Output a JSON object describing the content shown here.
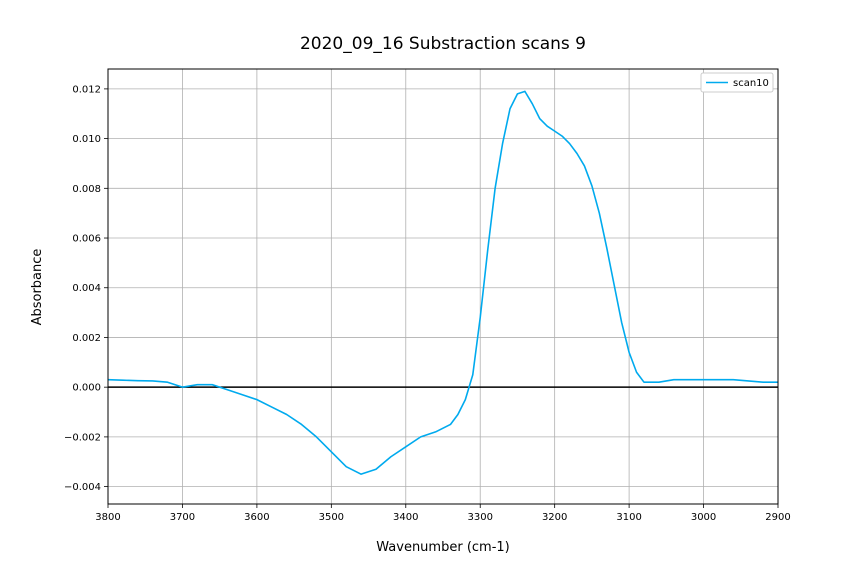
{
  "chart_data": {
    "type": "line",
    "title": "2020_09_16 Substraction scans 9",
    "xlabel": "Wavenumber (cm-1)",
    "ylabel": "Absorbance",
    "xlim": [
      3800,
      2900
    ],
    "ylim": [
      -0.0047,
      0.0128
    ],
    "x_reversed": true,
    "grid": true,
    "legend_position": "top-right",
    "x_ticks": [
      3800,
      3700,
      3600,
      3500,
      3400,
      3300,
      3200,
      3100,
      3000,
      2900
    ],
    "x_tick_labels": [
      "3800",
      "3700",
      "3600",
      "3500",
      "3400",
      "3300",
      "3200",
      "3100",
      "3000",
      "2900"
    ],
    "y_ticks": [
      -0.004,
      -0.002,
      0.0,
      0.002,
      0.004,
      0.006,
      0.008,
      0.01,
      0.012
    ],
    "y_tick_labels": [
      "−0.004",
      "−0.002",
      "0.000",
      "0.002",
      "0.004",
      "0.006",
      "0.008",
      "0.010",
      "0.012"
    ],
    "zero_line": true,
    "series": [
      {
        "name": "scan10",
        "color": "#00aaee",
        "points": [
          [
            3800,
            0.0003
          ],
          [
            3780,
            0.00028
          ],
          [
            3760,
            0.00026
          ],
          [
            3740,
            0.00025
          ],
          [
            3720,
            0.0002
          ],
          [
            3700,
            0.0
          ],
          [
            3680,
            0.0001
          ],
          [
            3660,
            0.0001
          ],
          [
            3640,
            -0.0001
          ],
          [
            3620,
            -0.0003
          ],
          [
            3600,
            -0.0005
          ],
          [
            3580,
            -0.0008
          ],
          [
            3560,
            -0.0011
          ],
          [
            3540,
            -0.0015
          ],
          [
            3520,
            -0.002
          ],
          [
            3500,
            -0.0026
          ],
          [
            3480,
            -0.0032
          ],
          [
            3460,
            -0.0035
          ],
          [
            3440,
            -0.0033
          ],
          [
            3420,
            -0.0028
          ],
          [
            3400,
            -0.0024
          ],
          [
            3380,
            -0.002
          ],
          [
            3360,
            -0.0018
          ],
          [
            3340,
            -0.0015
          ],
          [
            3330,
            -0.0011
          ],
          [
            3320,
            -0.0005
          ],
          [
            3310,
            0.0005
          ],
          [
            3300,
            0.0028
          ],
          [
            3290,
            0.0055
          ],
          [
            3280,
            0.008
          ],
          [
            3270,
            0.0098
          ],
          [
            3260,
            0.0112
          ],
          [
            3250,
            0.0118
          ],
          [
            3240,
            0.0119
          ],
          [
            3230,
            0.0114
          ],
          [
            3220,
            0.0108
          ],
          [
            3210,
            0.0105
          ],
          [
            3200,
            0.0103
          ],
          [
            3190,
            0.0101
          ],
          [
            3180,
            0.0098
          ],
          [
            3170,
            0.0094
          ],
          [
            3160,
            0.0089
          ],
          [
            3150,
            0.0081
          ],
          [
            3140,
            0.007
          ],
          [
            3130,
            0.0056
          ],
          [
            3120,
            0.0041
          ],
          [
            3110,
            0.0026
          ],
          [
            3100,
            0.0014
          ],
          [
            3090,
            0.0006
          ],
          [
            3080,
            0.0002
          ],
          [
            3070,
            0.0002
          ],
          [
            3060,
            0.0002
          ],
          [
            3040,
            0.0003
          ],
          [
            3020,
            0.0003
          ],
          [
            3000,
            0.0003
          ],
          [
            2980,
            0.0003
          ],
          [
            2960,
            0.0003
          ],
          [
            2940,
            0.00025
          ],
          [
            2920,
            0.0002
          ],
          [
            2900,
            0.0002
          ]
        ]
      }
    ]
  }
}
